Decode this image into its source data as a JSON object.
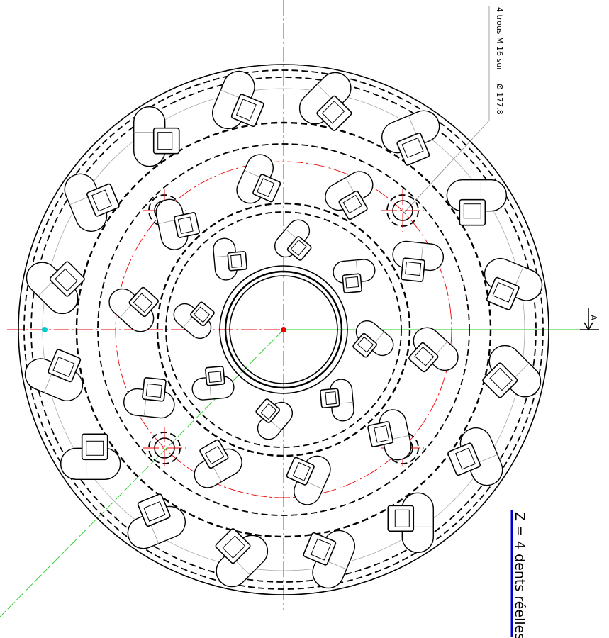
{
  "annotations": {
    "holes": "4 trous M 16 sur",
    "diameter": "Ø 177.8",
    "section": "A",
    "teeth": "Z = 4 dents réelles"
  }
}
